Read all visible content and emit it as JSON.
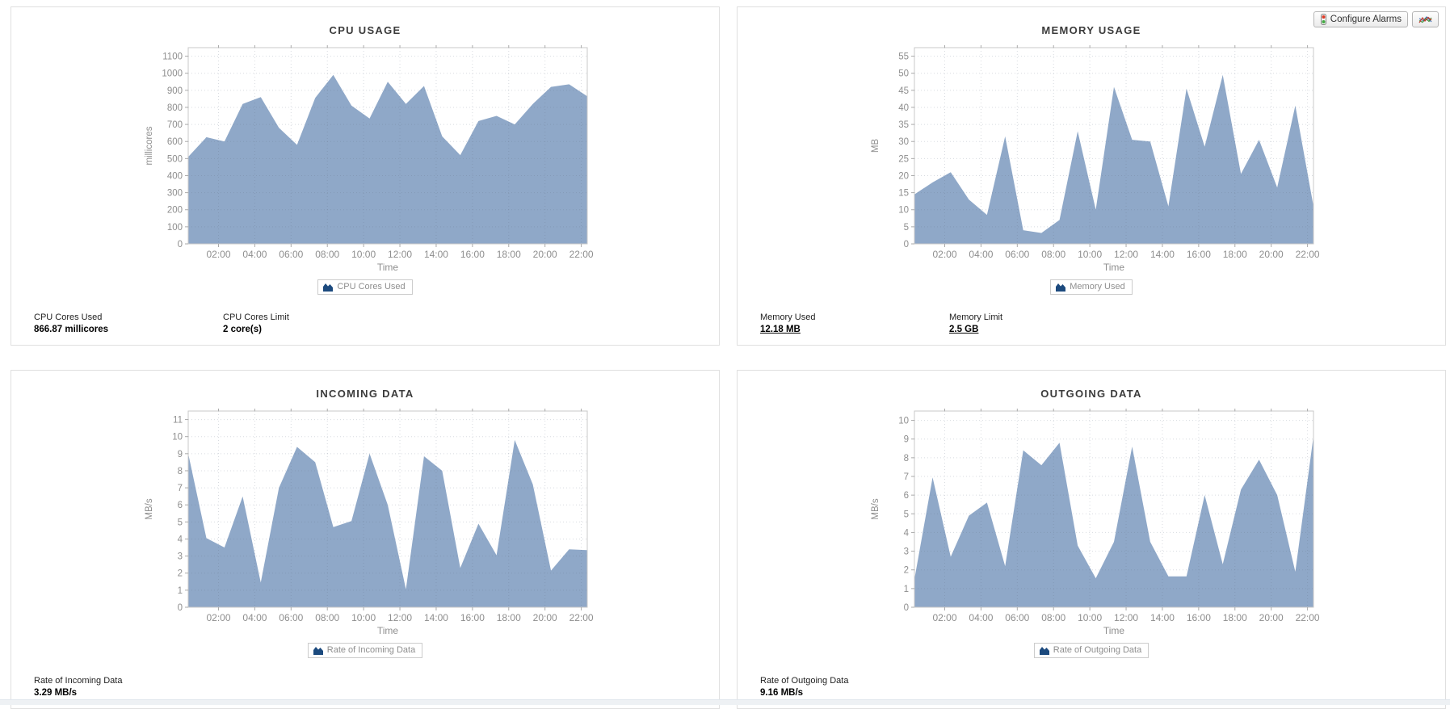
{
  "toolbar": {
    "configure_alarms_label": "Configure Alarms"
  },
  "colors": {
    "area_fill": "#8fa8c8",
    "legend_icon": "#1c4a7e",
    "plot_frame": "#c9c9c9",
    "tick_text": "#8e8e8e",
    "grid": "rgba(100,110,130,0.25)"
  },
  "chart_data": [
    {
      "type": "area",
      "title": "CPU USAGE",
      "ylabel": "millicores",
      "xlabel": "Time",
      "legend": "CPU Cores Used",
      "series_color": "#8fa8c8",
      "x_start_hour": 0.33,
      "x_step_hours": 1,
      "values": [
        510,
        625,
        600,
        820,
        860,
        680,
        580,
        855,
        990,
        810,
        735,
        950,
        820,
        925,
        630,
        520,
        720,
        750,
        700,
        820,
        920,
        935,
        865
      ],
      "ylim": [
        0,
        1150
      ],
      "yticks": [
        0,
        100,
        200,
        300,
        400,
        500,
        600,
        700,
        800,
        900,
        1000,
        1100
      ],
      "xtick_hours": [
        2,
        4,
        6,
        8,
        10,
        12,
        14,
        16,
        18,
        20,
        22
      ],
      "xtick_labels": [
        "02:00",
        "04:00",
        "06:00",
        "08:00",
        "10:00",
        "12:00",
        "14:00",
        "16:00",
        "18:00",
        "20:00",
        "22:00"
      ],
      "grid": true,
      "legend_position": "bottom"
    },
    {
      "type": "area",
      "title": "MEMORY USAGE",
      "ylabel": "MB",
      "xlabel": "Time",
      "legend": "Memory Used",
      "series_color": "#8fa8c8",
      "x_start_hour": 0.33,
      "x_step_hours": 1,
      "values": [
        14.5,
        18,
        21,
        13,
        8.5,
        31.5,
        4,
        3.2,
        7,
        33,
        10,
        46,
        30.5,
        30,
        11,
        45.5,
        28.5,
        49.5,
        20.5,
        30.5,
        16.5,
        40.5,
        11
      ],
      "ylim": [
        0,
        57.5
      ],
      "yticks": [
        0,
        5,
        10,
        15,
        20,
        25,
        30,
        35,
        40,
        45,
        50,
        55
      ],
      "xtick_hours": [
        2,
        4,
        6,
        8,
        10,
        12,
        14,
        16,
        18,
        20,
        22
      ],
      "xtick_labels": [
        "02:00",
        "04:00",
        "06:00",
        "08:00",
        "10:00",
        "12:00",
        "14:00",
        "16:00",
        "18:00",
        "20:00",
        "22:00"
      ],
      "grid": true,
      "legend_position": "bottom"
    },
    {
      "type": "area",
      "title": "INCOMING DATA",
      "ylabel": "MB/s",
      "xlabel": "Time",
      "legend": "Rate of Incoming Data",
      "series_color": "#8fa8c8",
      "x_start_hour": 0.33,
      "x_step_hours": 1,
      "values": [
        9,
        4.05,
        3.5,
        6.5,
        1.45,
        7,
        9.4,
        8.5,
        4.7,
        5.05,
        9,
        6,
        1.05,
        8.85,
        8,
        2.3,
        4.9,
        3.05,
        9.8,
        7.2,
        2.15,
        3.4,
        3.35
      ],
      "ylim": [
        0,
        11.5
      ],
      "yticks": [
        0,
        1,
        2,
        3,
        4,
        5,
        6,
        7,
        8,
        9,
        10,
        11
      ],
      "xtick_hours": [
        2,
        4,
        6,
        8,
        10,
        12,
        14,
        16,
        18,
        20,
        22
      ],
      "xtick_labels": [
        "02:00",
        "04:00",
        "06:00",
        "08:00",
        "10:00",
        "12:00",
        "14:00",
        "16:00",
        "18:00",
        "20:00",
        "22:00"
      ],
      "grid": true,
      "legend_position": "bottom"
    },
    {
      "type": "area",
      "title": "OUTGOING DATA",
      "ylabel": "MB/s",
      "xlabel": "Time",
      "legend": "Rate of Outgoing Data",
      "series_color": "#8fa8c8",
      "x_start_hour": 0.33,
      "x_step_hours": 1,
      "values": [
        1.5,
        6.95,
        2.7,
        4.9,
        5.6,
        2.2,
        8.4,
        7.6,
        8.8,
        3.3,
        1.55,
        3.5,
        8.6,
        3.5,
        1.65,
        1.65,
        6,
        2.3,
        6.3,
        7.9,
        6,
        1.9,
        9.16
      ],
      "ylim": [
        0,
        10.5
      ],
      "yticks": [
        0,
        1,
        2,
        3,
        4,
        5,
        6,
        7,
        8,
        9,
        10
      ],
      "xtick_hours": [
        2,
        4,
        6,
        8,
        10,
        12,
        14,
        16,
        18,
        20,
        22
      ],
      "xtick_labels": [
        "02:00",
        "04:00",
        "06:00",
        "08:00",
        "10:00",
        "12:00",
        "14:00",
        "16:00",
        "18:00",
        "20:00",
        "22:00"
      ],
      "grid": true,
      "legend_position": "bottom"
    }
  ],
  "panels": [
    {
      "stats": [
        {
          "label": "CPU Cores Used",
          "value": "866.87 millicores"
        },
        {
          "label": "CPU Cores Limit",
          "value": "2 core(s)"
        }
      ]
    },
    {
      "stats": [
        {
          "label": "Memory Used",
          "value": "12.18 MB"
        },
        {
          "label": "Memory Limit",
          "value": "2.5 GB"
        }
      ]
    },
    {
      "stats": [
        {
          "label": "Rate of Incoming Data",
          "value": "3.29 MB/s"
        }
      ]
    },
    {
      "stats": [
        {
          "label": "Rate of Outgoing Data",
          "value": "9.16 MB/s"
        }
      ]
    }
  ]
}
